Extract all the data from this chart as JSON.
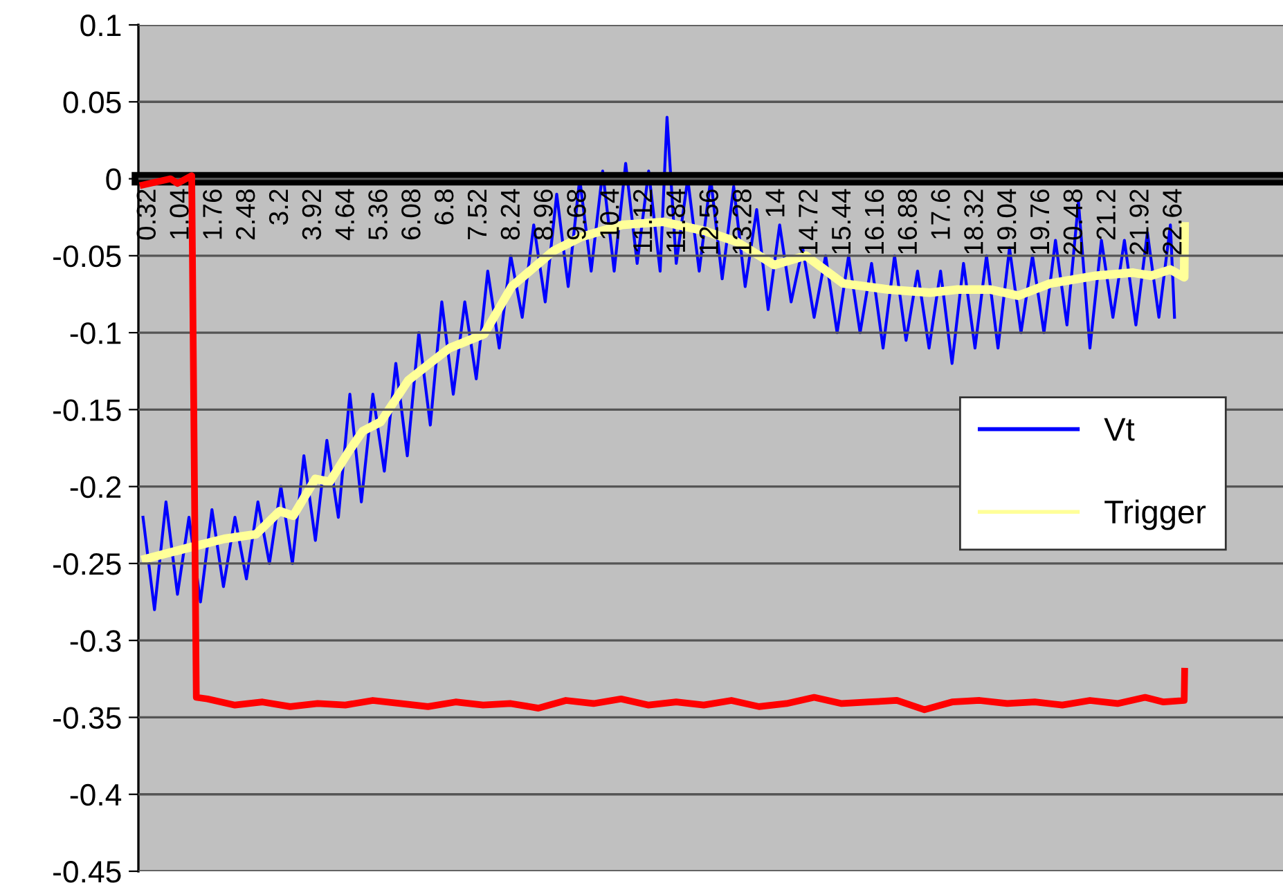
{
  "chart_data": {
    "type": "line",
    "series": [
      {
        "name": "Vt",
        "color": "#0000ff",
        "x": [
          0.2,
          0.45,
          0.7,
          0.95,
          1.2,
          1.45,
          1.7,
          1.95,
          2.2,
          2.45,
          2.7,
          2.95,
          3.2,
          3.45,
          3.7,
          3.95,
          4.2,
          4.45,
          4.7,
          4.95,
          5.2,
          5.45,
          5.7,
          5.95,
          6.2,
          6.45,
          6.7,
          6.95,
          7.2,
          7.45,
          7.7,
          7.95,
          8.2,
          8.45,
          8.7,
          8.95,
          9.2,
          9.45,
          9.7,
          9.95,
          10.2,
          10.45,
          10.7,
          10.95,
          11.2,
          11.45,
          11.6,
          11.8,
          12.05,
          12.3,
          12.55,
          12.8,
          13.05,
          13.3,
          13.55,
          13.8,
          14.05,
          14.3,
          14.55,
          14.8,
          15.05,
          15.3,
          15.55,
          15.8,
          16.05,
          16.3,
          16.55,
          16.8,
          17.05,
          17.3,
          17.55,
          17.8,
          18.05,
          18.3,
          18.55,
          18.8,
          19.05,
          19.3,
          19.55,
          19.8,
          20.05,
          20.3,
          20.55,
          20.8,
          21.05,
          21.3,
          21.55,
          21.8,
          22.05,
          22.3,
          22.55,
          22.64
        ],
        "values": [
          -0.22,
          -0.28,
          -0.21,
          -0.27,
          -0.22,
          -0.275,
          -0.215,
          -0.265,
          -0.22,
          -0.26,
          -0.21,
          -0.25,
          -0.2,
          -0.25,
          -0.18,
          -0.235,
          -0.17,
          -0.22,
          -0.14,
          -0.21,
          -0.14,
          -0.19,
          -0.12,
          -0.18,
          -0.1,
          -0.16,
          -0.08,
          -0.14,
          -0.08,
          -0.13,
          -0.06,
          -0.11,
          -0.05,
          -0.09,
          -0.03,
          -0.08,
          -0.01,
          -0.07,
          0,
          -0.06,
          0.005,
          -0.06,
          0.01,
          -0.055,
          0.005,
          -0.06,
          0.04,
          -0.055,
          0,
          -0.06,
          0,
          -0.065,
          -0.005,
          -0.07,
          -0.02,
          -0.085,
          -0.03,
          -0.08,
          -0.045,
          -0.09,
          -0.05,
          -0.1,
          -0.05,
          -0.1,
          -0.055,
          -0.11,
          -0.05,
          -0.105,
          -0.06,
          -0.11,
          -0.06,
          -0.12,
          -0.055,
          -0.11,
          -0.05,
          -0.11,
          -0.045,
          -0.1,
          -0.05,
          -0.1,
          -0.04,
          -0.095,
          -0.015,
          -0.11,
          -0.04,
          -0.09,
          -0.04,
          -0.095,
          -0.035,
          -0.09,
          -0.03,
          -0.09
        ]
      },
      {
        "name": "Trigger",
        "color": "#ffff99",
        "x": [
          0.26,
          1.16,
          1.97,
          2.66,
          3.17,
          3.47,
          3.95,
          4.26,
          4.68,
          4.98,
          5.37,
          5.97,
          6.48,
          6.87,
          7.62,
          8.22,
          9.12,
          9.72,
          10.62,
          11.52,
          12.43,
          13.12,
          13.93,
          14.62,
          15.43,
          16.42,
          17.32,
          17.92,
          18.64,
          19.24,
          19.94,
          20.93,
          21.74,
          22.13,
          22.55,
          22.85,
          22.86
        ],
        "values": [
          -0.247,
          -0.24,
          -0.234,
          -0.231,
          -0.216,
          -0.219,
          -0.195,
          -0.197,
          -0.177,
          -0.164,
          -0.158,
          -0.131,
          -0.119,
          -0.11,
          -0.101,
          -0.07,
          -0.047,
          -0.038,
          -0.03,
          -0.028,
          -0.034,
          -0.041,
          -0.056,
          -0.05,
          -0.068,
          -0.072,
          -0.074,
          -0.072,
          -0.072,
          -0.076,
          -0.068,
          -0.063,
          -0.061,
          -0.063,
          -0.059,
          -0.064,
          -0.031
        ]
      },
      {
        "color": "#ff0000",
        "x": [
          0.2,
          0.5,
          0.8,
          0.95,
          1.26,
          1.36,
          1.6,
          2.2,
          2.8,
          3.4,
          4.0,
          4.6,
          5.2,
          5.8,
          6.4,
          7.0,
          7.6,
          8.2,
          8.8,
          9.4,
          10.0,
          10.6,
          11.2,
          11.8,
          12.4,
          13.0,
          13.6,
          14.2,
          14.8,
          15.4,
          16.0,
          16.6,
          17.2,
          17.8,
          18.4,
          19.0,
          19.6,
          20.2,
          20.8,
          21.4,
          22.0,
          22.4,
          22.85,
          22.86
        ],
        "values": [
          -0.004,
          -0.002,
          0.0,
          -0.003,
          0.002,
          -0.337,
          -0.338,
          -0.342,
          -0.34,
          -0.343,
          -0.341,
          -0.342,
          -0.339,
          -0.341,
          -0.343,
          -0.34,
          -0.342,
          -0.341,
          -0.344,
          -0.339,
          -0.341,
          -0.338,
          -0.342,
          -0.34,
          -0.342,
          -0.339,
          -0.343,
          -0.341,
          -0.337,
          -0.341,
          -0.34,
          -0.339,
          -0.345,
          -0.34,
          -0.339,
          -0.341,
          -0.34,
          -0.342,
          -0.339,
          -0.341,
          -0.337,
          -0.34,
          -0.339,
          -0.32
        ]
      }
    ],
    "xlim": [
      0.1,
      25
    ],
    "xticks": [
      0.32,
      1.04,
      1.76,
      2.48,
      3.2,
      3.92,
      4.64,
      5.36,
      6.08,
      6.8,
      7.52,
      8.24,
      8.96,
      9.68,
      10.4,
      11.12,
      11.84,
      12.56,
      13.28,
      14,
      14.72,
      15.44,
      16.16,
      16.88,
      17.6,
      18.32,
      19.04,
      19.76,
      20.48,
      21.2,
      21.92,
      22.64
    ],
    "ylim": [
      -0.45,
      0.1
    ],
    "yticks": [
      -0.45,
      -0.4,
      -0.35,
      -0.3,
      -0.25,
      -0.2,
      -0.15,
      -0.1,
      -0.05,
      0,
      0.05,
      0.1
    ],
    "grid": "y",
    "legend": "right",
    "line_style": "solid",
    "marker": "none"
  }
}
